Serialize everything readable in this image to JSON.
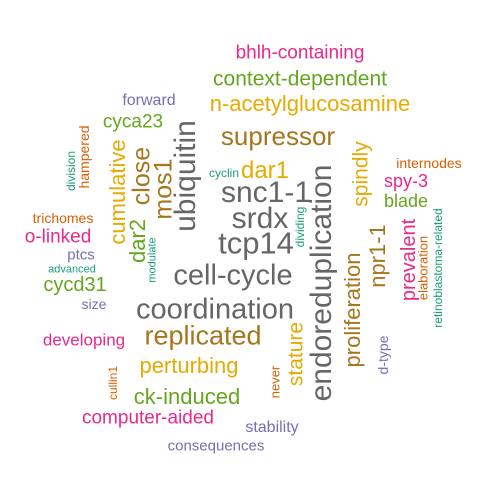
{
  "palette": {
    "teal": "#1b9e77",
    "orange": "#d95f02",
    "purple": "#7570b3",
    "magenta": "#e7298a",
    "green": "#66a61e",
    "gold": "#e6ab02",
    "brown": "#a6761d",
    "gray": "#666666"
  },
  "words": [
    {
      "text": "bhlh-containing",
      "color": "#e7298a"
    },
    {
      "text": "context-dependent",
      "color": "#66a61e"
    },
    {
      "text": "forward",
      "color": "#7570b3"
    },
    {
      "text": "n-acetylglucosamine",
      "color": "#e6ab02"
    },
    {
      "text": "cyca23",
      "color": "#66a61e"
    },
    {
      "text": "supressor",
      "color": "#a6761d"
    },
    {
      "text": "hampered",
      "color": "#d95f02"
    },
    {
      "text": "division",
      "color": "#1b9e77"
    },
    {
      "text": "cumulative",
      "color": "#e6ab02"
    },
    {
      "text": "close",
      "color": "#a6761d"
    },
    {
      "text": "ubiquitin",
      "color": "#666666"
    },
    {
      "text": "dar1",
      "color": "#e6ab02"
    },
    {
      "text": "cyclin",
      "color": "#1b9e77"
    },
    {
      "text": "snc1-1",
      "color": "#666666"
    },
    {
      "text": "mos1",
      "color": "#a6761d"
    },
    {
      "text": "endoreduplication",
      "color": "#666666"
    },
    {
      "text": "spindly",
      "color": "#e6ab02"
    },
    {
      "text": "internodes",
      "color": "#d95f02"
    },
    {
      "text": "spy-3",
      "color": "#e7298a"
    },
    {
      "text": "blade",
      "color": "#66a61e"
    },
    {
      "text": "trichomes",
      "color": "#d95f02"
    },
    {
      "text": "srdx",
      "color": "#666666"
    },
    {
      "text": "dividing",
      "color": "#1b9e77"
    },
    {
      "text": "o-linked",
      "color": "#e7298a"
    },
    {
      "text": "dar2",
      "color": "#66a61e"
    },
    {
      "text": "tcp14",
      "color": "#666666"
    },
    {
      "text": "npr1-1",
      "color": "#a6761d"
    },
    {
      "text": "prevalent",
      "color": "#e7298a"
    },
    {
      "text": "elaboration",
      "color": "#d95f02"
    },
    {
      "text": "retinoblastoma-related",
      "color": "#1b9e77"
    },
    {
      "text": "ptcs",
      "color": "#7570b3"
    },
    {
      "text": "advanced",
      "color": "#1b9e77"
    },
    {
      "text": "modulate",
      "color": "#1b9e77"
    },
    {
      "text": "proliferation",
      "color": "#a6761d"
    },
    {
      "text": "cycd31",
      "color": "#66a61e"
    },
    {
      "text": "cell-cycle",
      "color": "#666666"
    },
    {
      "text": "size",
      "color": "#7570b3"
    },
    {
      "text": "coordination",
      "color": "#666666"
    },
    {
      "text": "replicated",
      "color": "#a6761d"
    },
    {
      "text": "developing",
      "color": "#e7298a"
    },
    {
      "text": "d-type",
      "color": "#7570b3"
    },
    {
      "text": "cullin1",
      "color": "#d95f02"
    },
    {
      "text": "stature",
      "color": "#e6ab02"
    },
    {
      "text": "perturbing",
      "color": "#e6ab02"
    },
    {
      "text": "never",
      "color": "#d95f02"
    },
    {
      "text": "ck-induced",
      "color": "#66a61e"
    },
    {
      "text": "computer-aided",
      "color": "#e7298a"
    },
    {
      "text": "stability",
      "color": "#7570b3"
    },
    {
      "text": "consequences",
      "color": "#7570b3"
    }
  ]
}
